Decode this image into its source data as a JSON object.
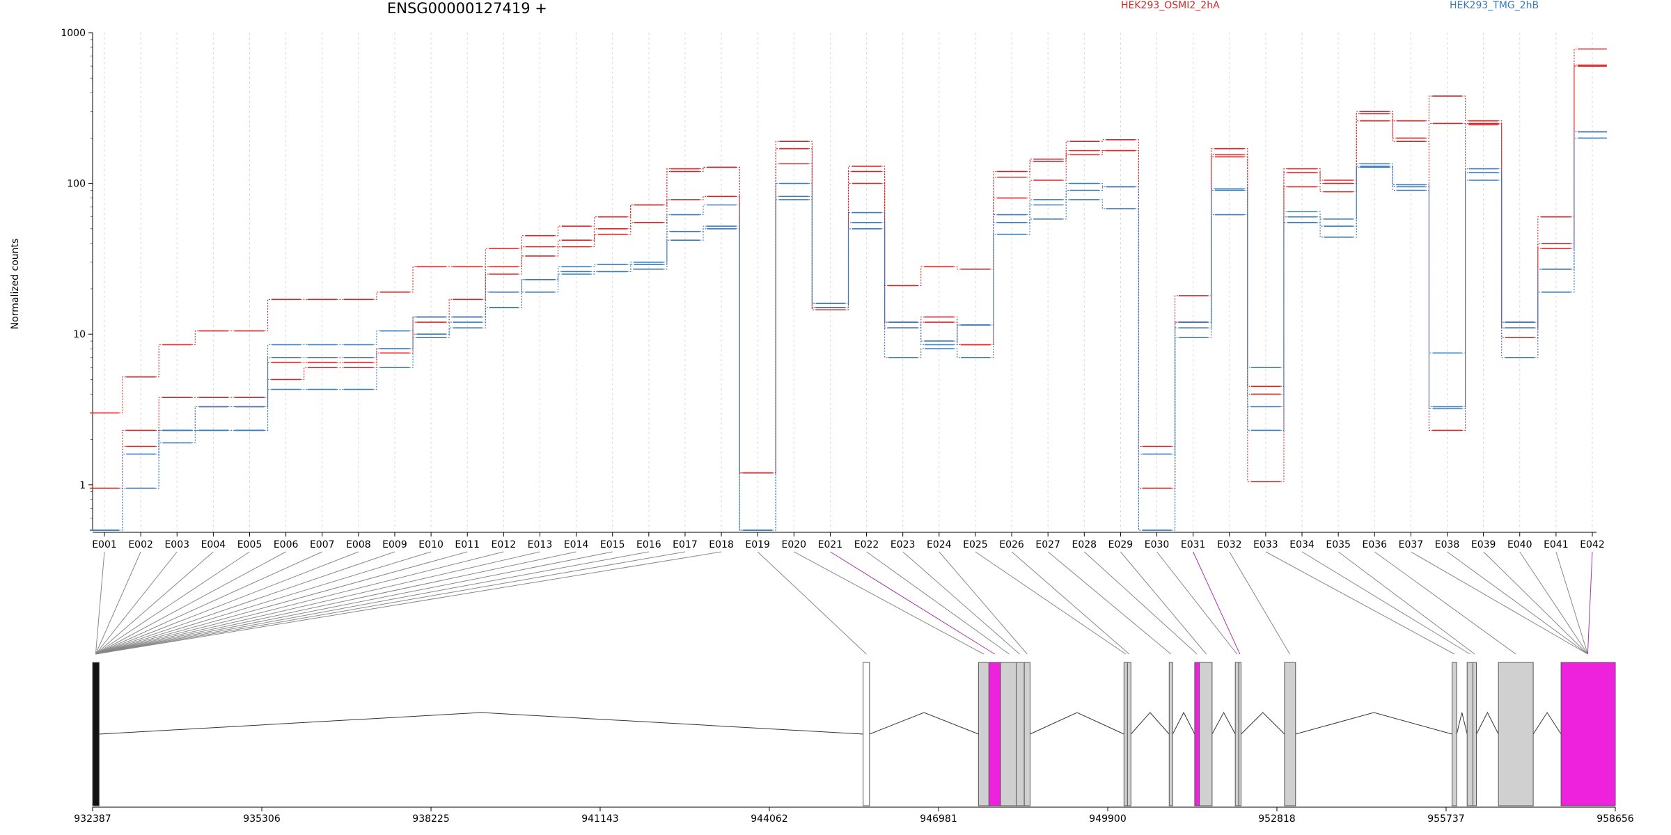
{
  "chart_data": {
    "type": "line",
    "title": "ENSG00000127419 +",
    "ylabel": "Normalized counts",
    "xlabel": "",
    "y_scale": "log",
    "ylim": [
      0.5,
      1000
    ],
    "y_ticks": [
      "1",
      "10",
      "100",
      "1000"
    ],
    "grid": "vertical dotted lines at each exon",
    "legend": "top-right",
    "categories": [
      "E001",
      "E002",
      "E003",
      "E004",
      "E005",
      "E006",
      "E007",
      "E008",
      "E009",
      "E010",
      "E011",
      "E012",
      "E013",
      "E014",
      "E015",
      "E016",
      "E017",
      "E018",
      "E019",
      "E020",
      "E021",
      "E022",
      "E023",
      "E024",
      "E025",
      "E026",
      "E027",
      "E028",
      "E029",
      "E030",
      "E031",
      "E032",
      "E033",
      "E034",
      "E035",
      "E036",
      "E037",
      "E038",
      "E039",
      "E040",
      "E041",
      "E042"
    ],
    "series": [
      {
        "name": "HEK293_OSMI2_2hA",
        "group": "HEK293_OSMI2_2hA",
        "values": [
          3,
          5.2,
          8.5,
          10.5,
          10.5,
          17,
          17,
          17,
          19,
          28,
          28,
          37,
          45,
          52,
          60,
          72,
          125,
          128,
          1.2,
          190,
          14.5,
          130,
          21,
          28,
          27,
          120,
          145,
          190,
          195,
          1.8,
          18,
          170,
          4,
          125,
          105,
          300,
          260,
          380,
          260,
          12,
          60,
          780
        ]
      },
      {
        "name": "HEK293_OSMI2_2hA",
        "group": "HEK293_OSMI2_2hA",
        "values": [
          0.95,
          2.3,
          3.8,
          3.8,
          3.8,
          6.5,
          6.5,
          6.5,
          8,
          13,
          13,
          28,
          38,
          42,
          50,
          72,
          120,
          128,
          1.2,
          170,
          15,
          120,
          12,
          13,
          8.5,
          110,
          140,
          165,
          165,
          0.95,
          12,
          155,
          4.5,
          118,
          100,
          290,
          200,
          250,
          250,
          11,
          40,
          610
        ]
      },
      {
        "name": "HEK293_OSMI2_2hA",
        "group": "HEK293_OSMI2_2hA",
        "values": [
          0.95,
          1.8,
          2.3,
          3.3,
          3.3,
          5,
          6,
          6,
          7.5,
          12,
          17,
          25,
          33,
          38,
          46,
          55,
          78,
          82,
          1.2,
          135,
          14.5,
          100,
          11,
          12,
          8.5,
          80,
          105,
          155,
          165,
          0.95,
          12,
          150,
          1.05,
          95,
          88,
          260,
          190,
          2.3,
          245,
          9.5,
          37,
          600
        ]
      },
      {
        "name": "HEK293_TMG_2hB",
        "group": "HEK293_TMG_2hB",
        "values": [
          0.5,
          1.6,
          2.3,
          3.3,
          3.3,
          8.5,
          8.5,
          8.5,
          10.5,
          13,
          13,
          19,
          23,
          28,
          29,
          30,
          62,
          72,
          0.5,
          100,
          16,
          64,
          12,
          8.5,
          11.5,
          62,
          78,
          100,
          95,
          1.6,
          12,
          92,
          6,
          65,
          58,
          135,
          98,
          7.5,
          125,
          12,
          27,
          220
        ]
      },
      {
        "name": "HEK293_TMG_2hB",
        "group": "HEK293_TMG_2hB",
        "values": [
          0.5,
          0.95,
          1.9,
          2.3,
          2.3,
          4.3,
          4.3,
          4.3,
          6,
          9.5,
          11,
          15,
          19,
          25,
          26,
          29,
          48,
          52,
          0.5,
          82,
          16,
          55,
          11,
          9,
          11.5,
          55,
          72,
          90,
          95,
          0.5,
          11,
          90,
          3.3,
          60,
          52,
          130,
          95,
          3.3,
          118,
          11,
          27,
          220
        ]
      },
      {
        "name": "HEK293_TMG_2hB",
        "group": "HEK293_TMG_2hB",
        "values": [
          0.5,
          0.95,
          2.3,
          2.3,
          2.3,
          7,
          7,
          7,
          8,
          10,
          12,
          15,
          23,
          26,
          26,
          27,
          42,
          50,
          0.5,
          78,
          15,
          50,
          7,
          8,
          7,
          46,
          58,
          78,
          68,
          0.5,
          9.5,
          62,
          2.3,
          55,
          44,
          128,
          90,
          3.2,
          105,
          7,
          19,
          200
        ]
      }
    ],
    "colors": {
      "HEK293_OSMI2_2hA": "#d62728",
      "HEK293_TMG_2hB": "#3a7ab8"
    },
    "gene_model": {
      "coordinate_ticks": [
        "932387",
        "935306",
        "938225",
        "941143",
        "944062",
        "946981",
        "949900",
        "952818",
        "955737",
        "958656"
      ],
      "range": [
        932387,
        958656
      ],
      "highlighted_exons": [
        "E021",
        "E031",
        "E042"
      ],
      "highlight_color": "#ee22dd",
      "exon_fill": "#d0d0d0"
    }
  }
}
